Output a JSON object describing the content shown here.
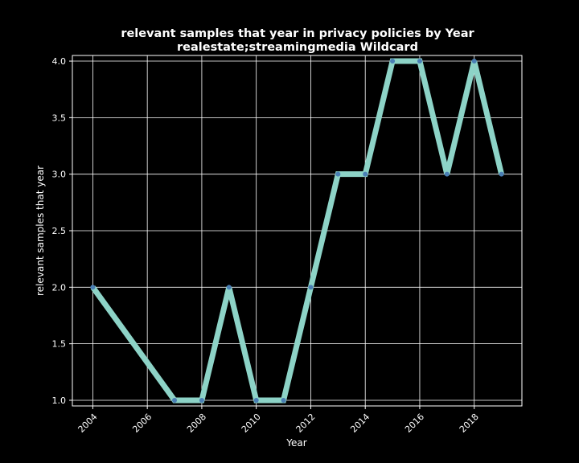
{
  "chart_data": {
    "type": "line",
    "title": "relevant samples that year in privacy policies by Year",
    "subtitle": "realestate;streamingmedia Wildcard",
    "xlabel": "Year",
    "ylabel": "relevant samples that year",
    "x": [
      2004,
      2007,
      2008,
      2009,
      2010,
      2011,
      2012,
      2013,
      2014,
      2015,
      2016,
      2017,
      2018,
      2019
    ],
    "series": [
      {
        "values": [
          2,
          1,
          1,
          2,
          1,
          1,
          2,
          3,
          3,
          4,
          4,
          3,
          4,
          3
        ]
      }
    ],
    "xlim": [
      2003.25,
      2019.75
    ],
    "ylim": [
      0.95,
      4.05
    ],
    "xticks": [
      "2004",
      "2006",
      "2008",
      "2010",
      "2012",
      "2014",
      "2016",
      "2018"
    ],
    "yticks": [
      "1.0",
      "1.5",
      "2.0",
      "2.5",
      "3.0",
      "3.5",
      "4.0"
    ],
    "grid": true,
    "colors": {
      "background": "#000000",
      "line": "#8dd3c7",
      "marker": "#4a7fb5",
      "grid": "#ffffff",
      "text": "#ffffff"
    }
  }
}
